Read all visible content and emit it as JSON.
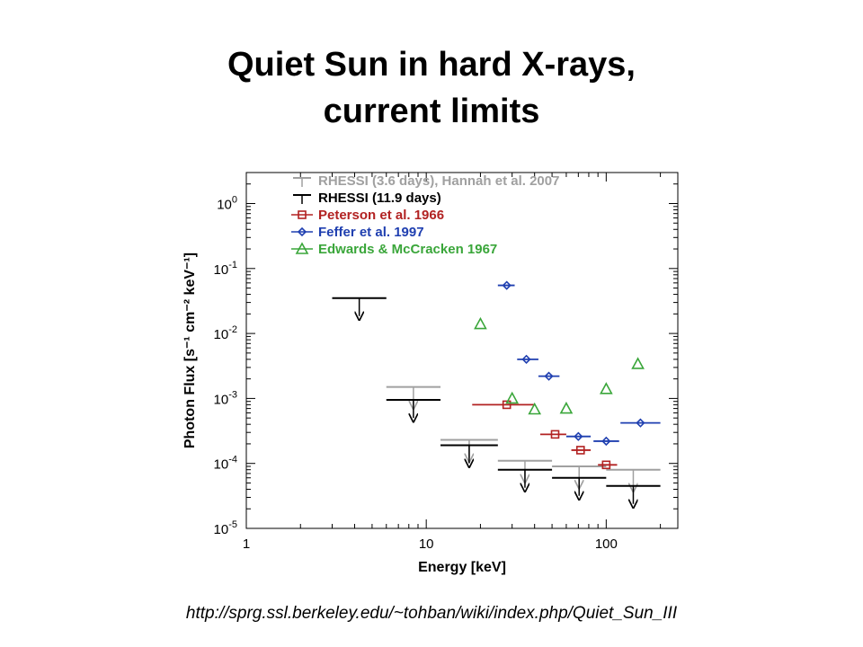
{
  "slide": {
    "title_line1": "Quiet Sun in hard X-rays,",
    "title_line2": "current limits",
    "source_url": "http://sprg.ssl.berkeley.edu/~tohban/wiki/index.php/Quiet_Sun_III"
  },
  "chart_data": {
    "type": "scatter",
    "xlabel": "Energy [keV]",
    "ylabel": "Photon Flux  [s⁻¹ cm⁻² keV⁻¹]",
    "xscale": "log",
    "yscale": "log",
    "xlim": [
      1,
      250
    ],
    "ylim": [
      1e-05,
      3
    ],
    "x_ticks": [
      {
        "value": 1,
        "label": "1"
      },
      {
        "value": 10,
        "label": "10"
      },
      {
        "value": 100,
        "label": "100"
      }
    ],
    "y_ticks": [
      {
        "value": 1,
        "base": "10",
        "exp": "0"
      },
      {
        "value": 0.1,
        "base": "10",
        "exp": "-1"
      },
      {
        "value": 0.01,
        "base": "10",
        "exp": "-2"
      },
      {
        "value": 0.001,
        "base": "10",
        "exp": "-3"
      },
      {
        "value": 0.0001,
        "base": "10",
        "exp": "-4"
      },
      {
        "value": 1e-05,
        "base": "10",
        "exp": "-5"
      }
    ],
    "legend_position": "top",
    "grid": false,
    "series": [
      {
        "name": "RHESSI (3.6 days), Hannah et al. 2007",
        "marker": "upper-limit",
        "color": "#a0a0a0",
        "points": [
          {
            "x0": 6,
            "x1": 12,
            "y": 0.0015
          },
          {
            "x0": 12,
            "x1": 25,
            "y": 0.00023
          },
          {
            "x0": 25,
            "x1": 50,
            "y": 0.00011
          },
          {
            "x0": 50,
            "x1": 100,
            "y": 9e-05
          },
          {
            "x0": 100,
            "x1": 200,
            "y": 8e-05
          }
        ]
      },
      {
        "name": "RHESSI (11.9 days)",
        "marker": "upper-limit",
        "color": "#000000",
        "points": [
          {
            "x0": 3,
            "x1": 6,
            "y": 0.035
          },
          {
            "x0": 6,
            "x1": 12,
            "y": 0.00095
          },
          {
            "x0": 12,
            "x1": 25,
            "y": 0.00019
          },
          {
            "x0": 25,
            "x1": 50,
            "y": 8e-05
          },
          {
            "x0": 50,
            "x1": 100,
            "y": 6e-05
          },
          {
            "x0": 100,
            "x1": 200,
            "y": 4.5e-05
          }
        ]
      },
      {
        "name": "Peterson et al. 1966",
        "marker": "square",
        "color": "#b22222",
        "points": [
          {
            "x": 28,
            "x0": 18,
            "x1": 40,
            "y": 0.0008
          },
          {
            "x": 52,
            "x0": 43,
            "x1": 60,
            "y": 0.00028
          },
          {
            "x": 72,
            "x0": 64,
            "x1": 82,
            "y": 0.00016
          },
          {
            "x": 100,
            "x0": 90,
            "x1": 115,
            "y": 9.5e-05
          }
        ]
      },
      {
        "name": "Feffer et al. 1997",
        "marker": "diamond",
        "color": "#1f3fb0",
        "points": [
          {
            "x": 28,
            "x0": 25,
            "x1": 31,
            "y": 0.055
          },
          {
            "x": 36,
            "x0": 32,
            "x1": 42,
            "y": 0.004
          },
          {
            "x": 48,
            "x0": 42,
            "x1": 55,
            "y": 0.0022
          },
          {
            "x": 70,
            "x0": 60,
            "x1": 82,
            "y": 0.00026
          },
          {
            "x": 100,
            "x0": 85,
            "x1": 118,
            "y": 0.00022
          },
          {
            "x": 155,
            "x0": 120,
            "x1": 200,
            "y": 0.00042
          }
        ]
      },
      {
        "name": "Edwards & McCracken 1967",
        "marker": "triangle",
        "color": "#3aa63a",
        "points": [
          {
            "x": 20,
            "y": 0.014
          },
          {
            "x": 30,
            "y": 0.001
          },
          {
            "x": 40,
            "y": 0.00068
          },
          {
            "x": 60,
            "y": 0.0007
          },
          {
            "x": 100,
            "y": 0.0014
          },
          {
            "x": 150,
            "y": 0.0034
          }
        ]
      }
    ]
  }
}
